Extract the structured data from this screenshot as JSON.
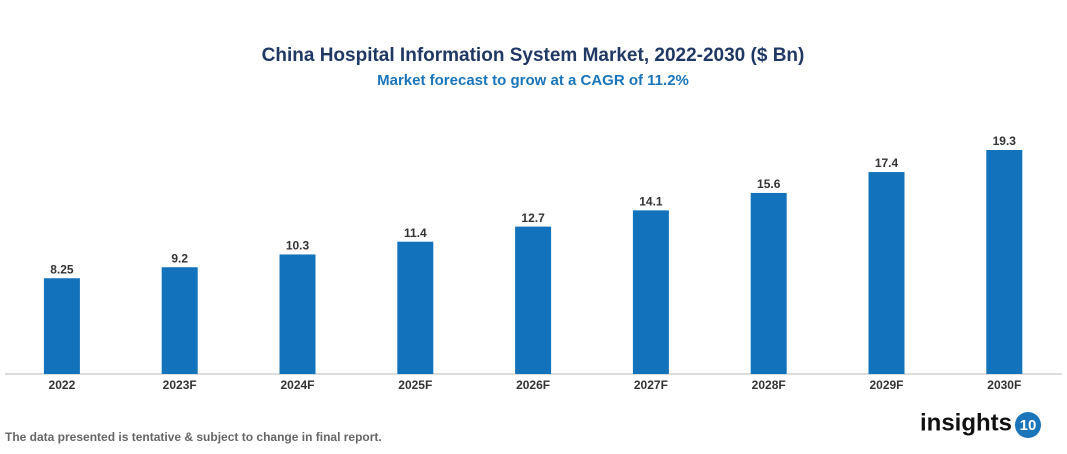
{
  "chart_data": {
    "type": "bar",
    "title": "China Hospital Information System Market, 2022-2030 ($ Bn)",
    "subtitle": "Market forecast to grow at a CAGR of 11.2%",
    "categories": [
      "2022",
      "2023F",
      "2024F",
      "2025F",
      "2026F",
      "2027F",
      "2028F",
      "2029F",
      "2030F"
    ],
    "values": [
      8.25,
      9.2,
      10.3,
      11.4,
      12.7,
      14.1,
      15.6,
      17.4,
      19.3
    ],
    "color": "#1272bb"
  },
  "footnote": "The data presented is tentative & subject to change in final report.",
  "logo": {
    "text": "insights",
    "badge": "10"
  }
}
